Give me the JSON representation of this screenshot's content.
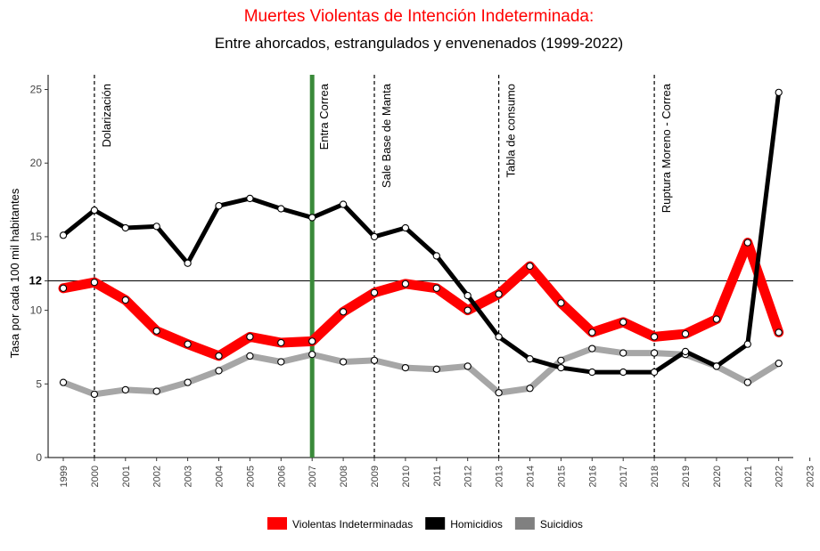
{
  "chart_data": {
    "type": "line",
    "title": "Muertes Violentas de Intención Indeterminada:",
    "subtitle": "Entre ahorcados, estrangulados y envenenados (1999-2022)",
    "xlabel": "",
    "ylabel": "Tasa por cada 100 mil habitantes",
    "x": [
      1999,
      2000,
      2001,
      2002,
      2003,
      2004,
      2005,
      2006,
      2007,
      2008,
      2009,
      2010,
      2011,
      2012,
      2013,
      2014,
      2015,
      2016,
      2017,
      2018,
      2019,
      2020,
      2021,
      2022
    ],
    "x_ticks": [
      "1999",
      "2000",
      "2001",
      "2002",
      "2003",
      "2004",
      "2005",
      "2006",
      "2007",
      "2008",
      "2009",
      "2010",
      "2011",
      "2012",
      "2013",
      "2014",
      "2015",
      "2016",
      "2017",
      "2018",
      "2019",
      "2020",
      "2021",
      "2022",
      "2023"
    ],
    "xlim": [
      1999,
      2023
    ],
    "ylim": [
      0,
      26
    ],
    "y_ticks": [
      0,
      5,
      10,
      12,
      15,
      20,
      25
    ],
    "y_tick_labels": [
      "0",
      "5",
      "10",
      "12",
      "15",
      "20",
      "25"
    ],
    "grid": false,
    "legend_position": "bottom",
    "series": [
      {
        "name": "Suicidios",
        "color": "#a6a6a6",
        "values": [
          5.1,
          4.3,
          4.6,
          4.5,
          5.1,
          5.9,
          6.9,
          6.5,
          7.0,
          6.5,
          6.6,
          6.1,
          6.0,
          6.2,
          4.4,
          4.7,
          6.6,
          7.4,
          7.1,
          7.1,
          7.0,
          6.2,
          5.1,
          6.4
        ]
      },
      {
        "name": "Violentas Indeterminadas",
        "color": "#ff0000",
        "values": [
          11.5,
          11.9,
          10.7,
          8.6,
          7.7,
          6.9,
          8.2,
          7.8,
          7.9,
          9.9,
          11.2,
          11.8,
          11.5,
          10.0,
          11.1,
          13.0,
          10.5,
          8.5,
          9.2,
          8.2,
          8.4,
          9.4,
          14.6,
          8.5
        ]
      },
      {
        "name": "Homicidios",
        "color": "#000000",
        "values": [
          15.1,
          16.8,
          15.6,
          15.7,
          13.2,
          17.1,
          17.6,
          16.9,
          16.3,
          17.2,
          15.0,
          15.6,
          13.7,
          11.0,
          8.2,
          6.7,
          6.1,
          5.8,
          5.8,
          5.8,
          7.2,
          6.2,
          7.7,
          24.8
        ]
      }
    ],
    "legend": [
      {
        "label": "Violentas Indeterminadas",
        "color": "#ff0000"
      },
      {
        "label": "Homicidios",
        "color": "#000000"
      },
      {
        "label": "Suicidios",
        "color": "#808080"
      }
    ],
    "reference_line": {
      "y": 12
    },
    "annotations": [
      {
        "x": 2000,
        "label": "Dolarización",
        "style": "dashed",
        "color": "#000000"
      },
      {
        "x": 2007,
        "label": "Entra Correa",
        "style": "solid",
        "color": "#3a8a3a"
      },
      {
        "x": 2009,
        "label": "Sale Base de Manta",
        "style": "dashed",
        "color": "#000000"
      },
      {
        "x": 2013,
        "label": "Tabla de consumo",
        "style": "dashed",
        "color": "#000000"
      },
      {
        "x": 2018,
        "label": "Ruptura Moreno - Correa",
        "style": "dashed",
        "color": "#000000"
      }
    ]
  }
}
